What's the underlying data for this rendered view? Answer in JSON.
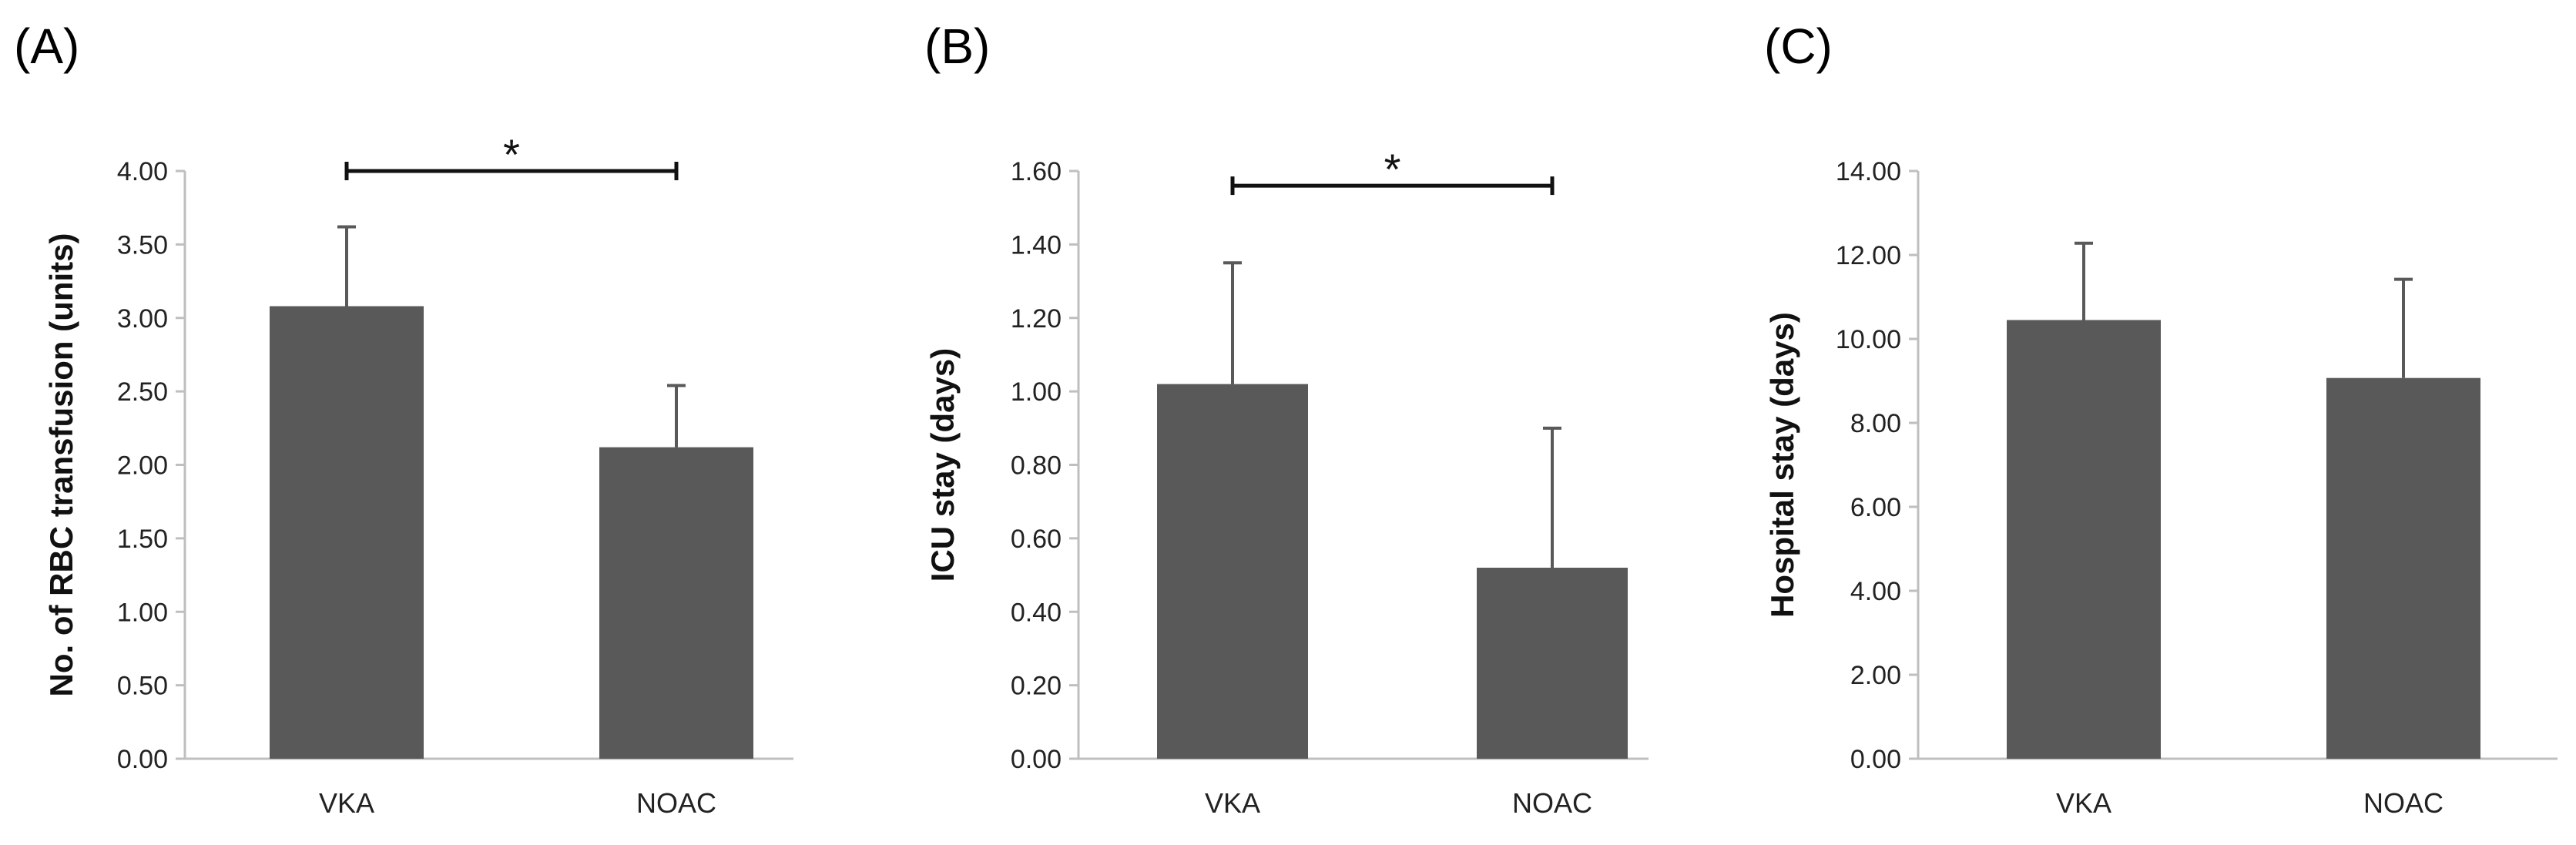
{
  "chart_data": [
    {
      "type": "bar",
      "panel_label": "(A)",
      "ylabel": "No. of RBC transfusion (units)",
      "categories": [
        "VKA",
        "NOAC"
      ],
      "values": [
        3.08,
        2.12
      ],
      "error": [
        0.54,
        0.42
      ],
      "ylim": [
        0,
        4
      ],
      "yticks": [
        "0.00",
        "0.50",
        "1.00",
        "1.50",
        "2.00",
        "2.50",
        "3.00",
        "3.50",
        "4.00"
      ],
      "significance": {
        "from": "VKA",
        "to": "NOAC",
        "at": 4.0,
        "label": "*"
      },
      "grid": false,
      "bar_color": "#595959"
    },
    {
      "type": "bar",
      "panel_label": "(B)",
      "ylabel": "ICU stay (days)",
      "categories": [
        "VKA",
        "NOAC"
      ],
      "values": [
        1.02,
        0.52
      ],
      "error": [
        0.33,
        0.38
      ],
      "ylim": [
        0,
        1.6
      ],
      "yticks": [
        "0.00",
        "0.20",
        "0.40",
        "0.60",
        "0.80",
        "1.00",
        "1.20",
        "1.40",
        "1.60"
      ],
      "significance": {
        "from": "VKA",
        "to": "NOAC",
        "at": 1.56,
        "label": "*"
      },
      "grid": false,
      "bar_color": "#595959"
    },
    {
      "type": "bar",
      "panel_label": "(C)",
      "ylabel": "Hospital stay (days)",
      "categories": [
        "VKA",
        "NOAC"
      ],
      "values": [
        10.45,
        9.07
      ],
      "error": [
        1.83,
        2.35
      ],
      "ylim": [
        0,
        14
      ],
      "yticks": [
        "0.00",
        "2.00",
        "4.00",
        "6.00",
        "8.00",
        "10.00",
        "12.00",
        "14.00"
      ],
      "significance": null,
      "grid": false,
      "bar_color": "#595959"
    }
  ]
}
